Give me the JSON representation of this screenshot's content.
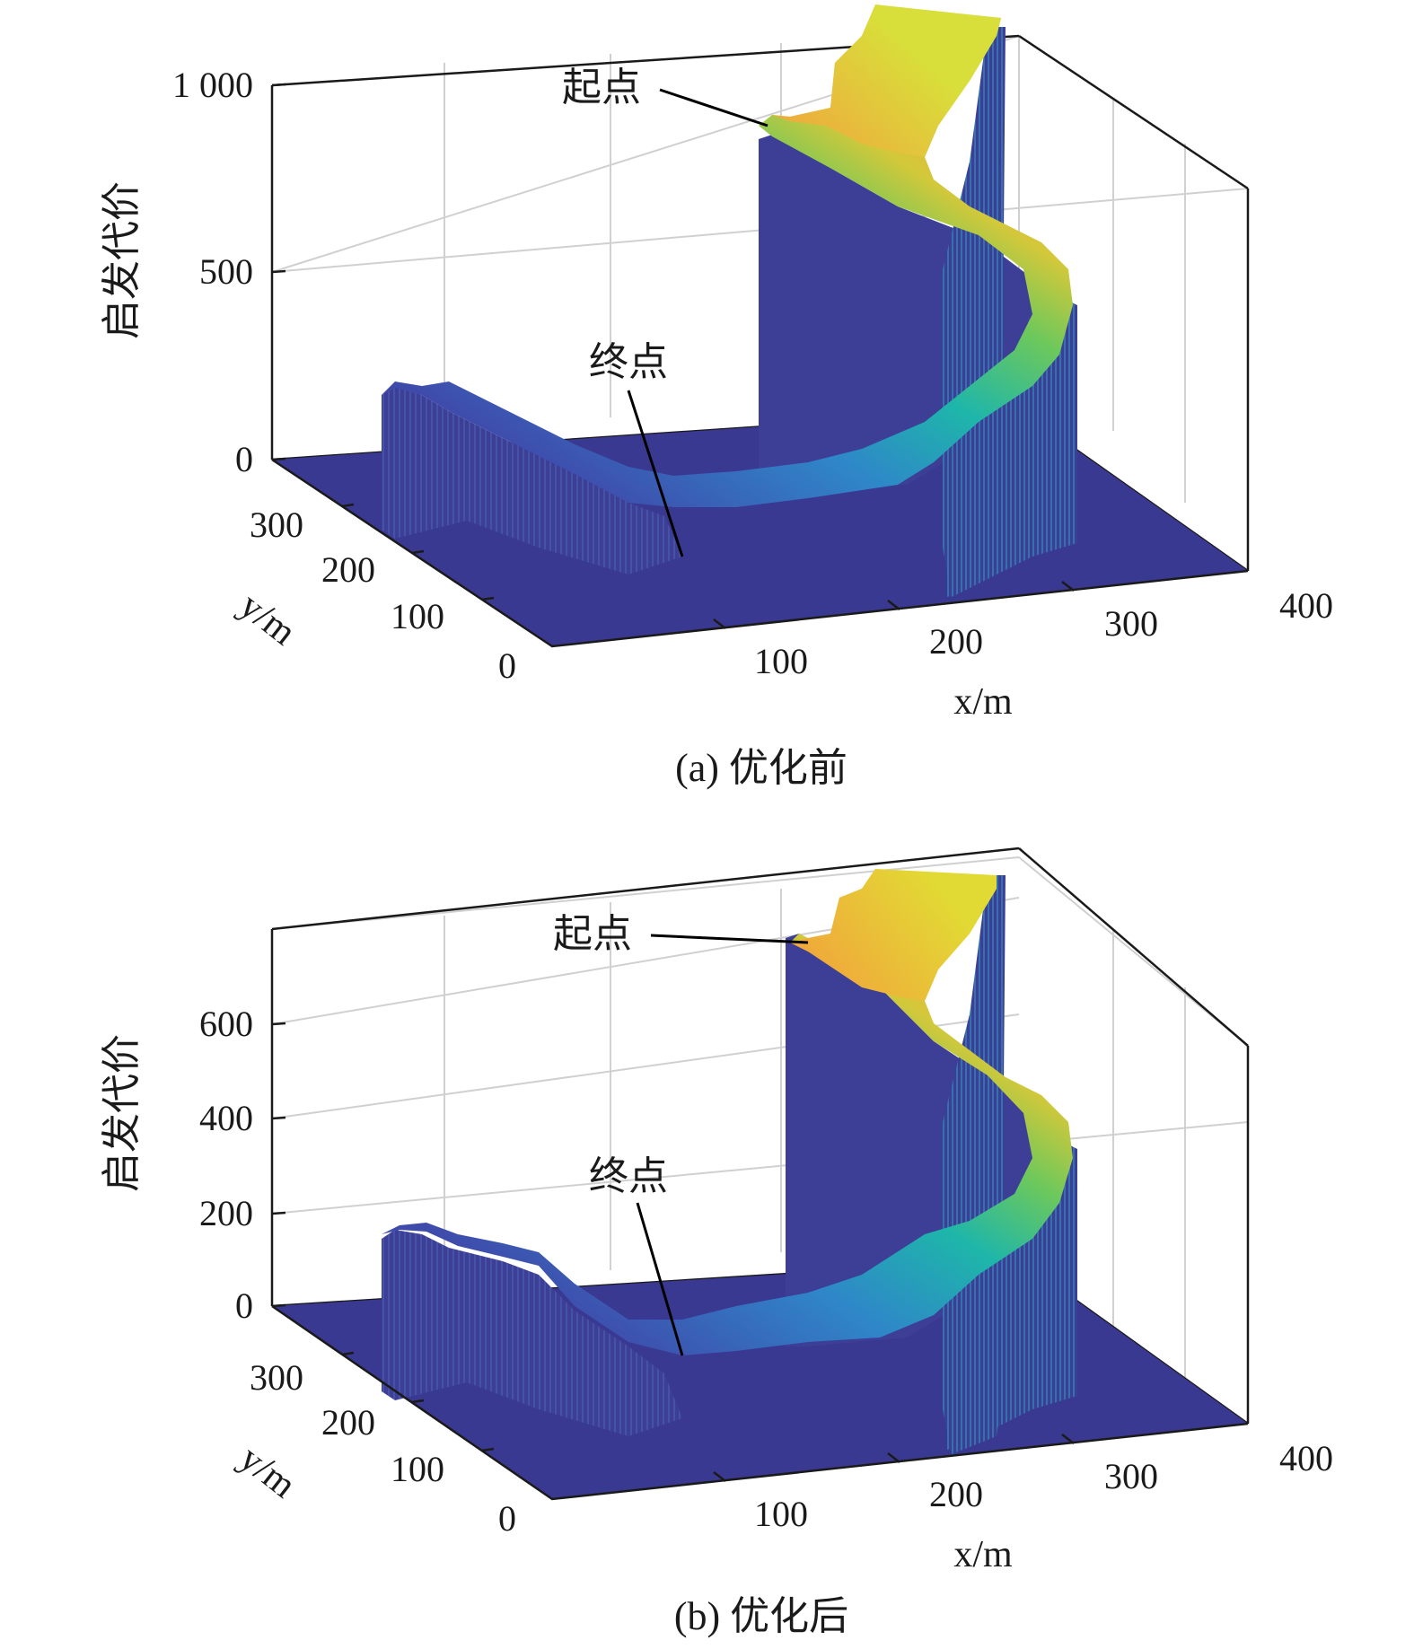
{
  "chart_data": [
    {
      "type": "surface",
      "caption": "(a) 优化前",
      "zlabel": "启发代价",
      "xlabel": "x/m",
      "ylabel": "y/m",
      "zlim": [
        0,
        1000
      ],
      "xlim": [
        0,
        400
      ],
      "ylim": [
        0,
        350
      ],
      "z_ticks": [
        "0",
        "500",
        "1 000"
      ],
      "z_tick_values": [
        0,
        500,
        1000
      ],
      "x_ticks": [
        "100",
        "200",
        "300",
        "400"
      ],
      "x_tick_values": [
        100,
        200,
        300,
        400
      ],
      "y_ticks": [
        "0",
        "100",
        "200",
        "300"
      ],
      "y_tick_values": [
        0,
        100,
        200,
        300
      ],
      "grid": true,
      "colormap": "parula",
      "annotations": [
        {
          "text": "起点",
          "label": "start"
        },
        {
          "text": "终点",
          "label": "goal"
        }
      ],
      "path_profile": [
        {
          "x": 55,
          "cost": 160
        },
        {
          "x": 90,
          "cost": 120
        },
        {
          "x": 130,
          "cost": 60
        },
        {
          "x": 160,
          "cost": 20
        },
        {
          "x": 210,
          "cost": 80
        },
        {
          "x": 240,
          "cost": 170
        },
        {
          "x": 270,
          "cost": 320
        },
        {
          "x": 290,
          "cost": 500
        },
        {
          "x": 300,
          "cost": 700
        },
        {
          "x": 320,
          "cost": 860
        },
        {
          "x": 330,
          "cost": 1000
        }
      ]
    },
    {
      "type": "surface",
      "caption": "(b) 优化后",
      "zlabel": "启发代价",
      "xlabel": "x/m",
      "ylabel": "y/m",
      "zlim": [
        0,
        770
      ],
      "xlim": [
        0,
        400
      ],
      "ylim": [
        0,
        350
      ],
      "z_ticks": [
        "0",
        "200",
        "400",
        "600"
      ],
      "z_tick_values": [
        0,
        200,
        400,
        600
      ],
      "x_ticks": [
        "100",
        "200",
        "300",
        "400"
      ],
      "x_tick_values": [
        100,
        200,
        300,
        400
      ],
      "y_ticks": [
        "0",
        "100",
        "200",
        "300"
      ],
      "y_tick_values": [
        0,
        100,
        200,
        300
      ],
      "grid": true,
      "colormap": "parula",
      "annotations": [
        {
          "text": "起点",
          "label": "start"
        },
        {
          "text": "终点",
          "label": "goal"
        }
      ],
      "path_profile": [
        {
          "x": 55,
          "cost": 140
        },
        {
          "x": 90,
          "cost": 110
        },
        {
          "x": 130,
          "cost": 40
        },
        {
          "x": 160,
          "cost": 10
        },
        {
          "x": 210,
          "cost": 60
        },
        {
          "x": 240,
          "cost": 130
        },
        {
          "x": 270,
          "cost": 250
        },
        {
          "x": 290,
          "cost": 390
        },
        {
          "x": 300,
          "cost": 520
        },
        {
          "x": 320,
          "cost": 650
        },
        {
          "x": 330,
          "cost": 770
        }
      ]
    }
  ],
  "colors": {
    "base": "#3a3991",
    "wall": "#3d3e96",
    "axis": "#1a1a1a",
    "grid": "#d0d0d0"
  }
}
